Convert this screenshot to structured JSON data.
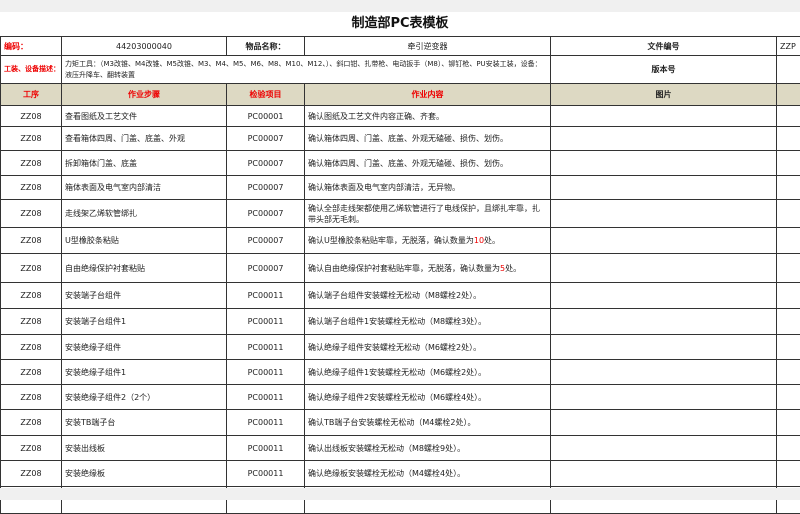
{
  "title": "制造部PC表模板",
  "info": {
    "code_label": "编码：",
    "code_value": "44203000040",
    "item_name_label": "物品名称：",
    "item_name_value": "牵引逆变器",
    "doc_no_label": "文件编号",
    "doc_no_value": "ZZP",
    "tools_label": "工装、设备描述：",
    "tools_value": "力矩工具：（M3改锥、M4改锥、M5改锥、M3、M4、M5、M6、M8、M10、M12、）、斜口钳、扎带枪、电动扳手（M8）、铆钉枪、PU安装工装，设备：液压升降车、翻转装置",
    "version_label": "版本号"
  },
  "headers": [
    "工序",
    "作业步骤",
    "检验项目",
    "作业内容",
    "图片"
  ],
  "rows": [
    {
      "op": "ZZ08",
      "step": "查看图纸及工艺文件",
      "item": "PC00001",
      "content": "确认图纸及工艺文件内容正确、齐套。"
    },
    {
      "op": "ZZ08",
      "step": "查看箱体四周、门盖、底盖、外观",
      "item": "PC00007",
      "content": "确认箱体四周、门盖、底盖、外观无磕碰、损伤、划伤。"
    },
    {
      "op": "ZZ08",
      "step": "拆卸箱体门盖、底盖",
      "item": "PC00007",
      "content": "确认箱体四周、门盖、底盖、外观无磕碰、损伤、划伤。"
    },
    {
      "op": "ZZ08",
      "step": "箱体表面及电气室内部清洁",
      "item": "PC00007",
      "content": "确认箱体表面及电气室内部清洁，无异物。"
    },
    {
      "op": "ZZ08",
      "step": "走线架乙烯软管绑扎",
      "item": "PC00007",
      "content": "确认全部走线架都使用乙烯软管进行了电线保护，且绑扎牢靠，扎带头部无毛刺。"
    },
    {
      "op": "ZZ08",
      "step": "U型橡胶条粘贴",
      "item": "PC00007",
      "content": "确认U型橡胶条粘贴牢靠，无脱落，确认数量为",
      "num": "10",
      "suffix": "处。"
    },
    {
      "op": "ZZ08",
      "step": "自由绝缘保护衬套粘贴",
      "item": "PC00007",
      "content": "确认自由绝缘保护衬套粘贴牢靠，无脱落，确认数量为",
      "num": "5",
      "suffix": "处。"
    },
    {
      "op": "ZZ08",
      "step": "安装端子台组件",
      "item": "PC00011",
      "content": "确认端子台组件安装螺栓无松动（M8螺栓2处）。"
    },
    {
      "op": "ZZ08",
      "step": "安装端子台组件1",
      "item": "PC00011",
      "content": "确认端子台组件1安装螺栓无松动（M8螺栓3处）。"
    },
    {
      "op": "ZZ08",
      "step": "安装绝缘子组件",
      "item": "PC00011",
      "content": "确认绝缘子组件安装螺栓无松动（M6螺栓2处）。"
    },
    {
      "op": "ZZ08",
      "step": "安装绝缘子组件1",
      "item": "PC00011",
      "content": "确认绝缘子组件1安装螺栓无松动（M6螺栓2处）。"
    },
    {
      "op": "ZZ08",
      "step": "安装绝缘子组件2（2个）",
      "item": "PC00011",
      "content": "确认绝缘子组件2安装螺栓无松动（M6螺栓4处）。"
    },
    {
      "op": "ZZ08",
      "step": "安装TB端子台",
      "item": "PC00011",
      "content": "确认TB端子台安装螺栓无松动（M4螺栓2处）。"
    },
    {
      "op": "ZZ08",
      "step": "安装出线板",
      "item": "PC00011",
      "content": "确认出线板安装螺栓无松动（M8螺栓9处）。"
    },
    {
      "op": "ZZ08",
      "step": "安装绝缘板",
      "item": "PC00011",
      "content": "确认绝缘板安装螺栓无松动（M4螺栓4处）。"
    },
    {
      "op": "",
      "step": "",
      "item": "",
      "content": ""
    }
  ],
  "colors": {
    "header_bg": "#ddd9c3",
    "label_red": "#ee0000"
  }
}
